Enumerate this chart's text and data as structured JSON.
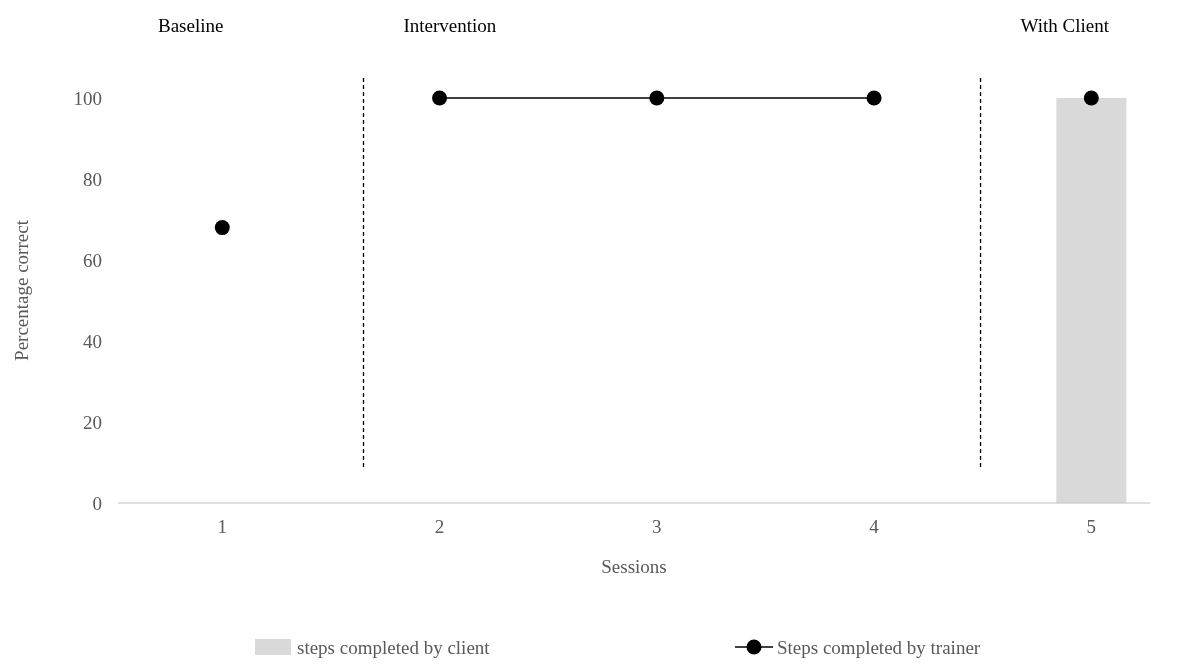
{
  "chart_data": {
    "type": "bar",
    "xlabel": "Sessions",
    "ylabel": "Percentage correct",
    "x": [
      1,
      2,
      3,
      4,
      5
    ],
    "xlim": [
      0.52,
      5.27
    ],
    "xticks": [
      1,
      2,
      3,
      4,
      5
    ],
    "ylim": [
      0,
      105
    ],
    "yticks": [
      0,
      20,
      40,
      60,
      80,
      100
    ],
    "grid": false,
    "legend": "bottom",
    "marker": "circle",
    "line_style": "solid",
    "series": [
      {
        "name": "steps completed by client",
        "color": "#d9d9d9",
        "values": [
          null,
          null,
          null,
          null,
          100
        ]
      },
      {
        "name": "Steps completed by trainer",
        "type": "line",
        "color": "#000000",
        "values": [
          68,
          null,
          null,
          null,
          null
        ]
      },
      {
        "type": "line",
        "color": "#000000",
        "values": [
          null,
          100,
          100,
          100,
          null
        ]
      },
      {
        "type": "line",
        "color": "#000000",
        "values": [
          null,
          null,
          null,
          null,
          100
        ]
      }
    ],
    "ref_lines": [
      {
        "axis": "x",
        "value": 1.65,
        "line_style": "dashed",
        "color": "#000000"
      },
      {
        "axis": "x",
        "value": 4.49,
        "line_style": "dashed",
        "color": "#000000"
      }
    ],
    "annotations": [
      "Baseline",
      "Intervention",
      "With Client"
    ]
  }
}
